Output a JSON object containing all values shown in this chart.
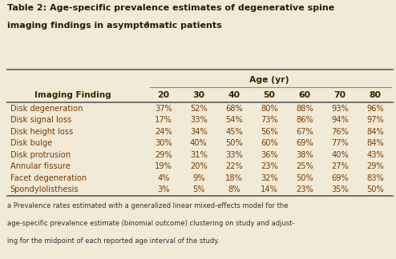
{
  "title_line1": "Table 2: Age-specific prevalence estimates of degenerative spine",
  "title_line2": "imaging findings in asymptomatic patients",
  "title_superscript": "a",
  "age_header": "Age (yr)",
  "col_header": "Imaging Finding",
  "ages": [
    "20",
    "30",
    "40",
    "50",
    "60",
    "70",
    "80"
  ],
  "rows": [
    [
      "Disk degeneration",
      "37%",
      "52%",
      "68%",
      "80%",
      "88%",
      "93%",
      "96%"
    ],
    [
      "Disk signal loss",
      "17%",
      "33%",
      "54%",
      "73%",
      "86%",
      "94%",
      "97%"
    ],
    [
      "Disk height loss",
      "24%",
      "34%",
      "45%",
      "56%",
      "67%",
      "76%",
      "84%"
    ],
    [
      "Disk bulge",
      "30%",
      "40%",
      "50%",
      "60%",
      "69%",
      "77%",
      "84%"
    ],
    [
      "Disk protrusion",
      "29%",
      "31%",
      "33%",
      "36%",
      "38%",
      "40%",
      "43%"
    ],
    [
      "Annular fissure",
      "19%",
      "20%",
      "22%",
      "23%",
      "25%",
      "27%",
      "29%"
    ],
    [
      "Facet degeneration",
      "4%",
      "9%",
      "18%",
      "32%",
      "50%",
      "69%",
      "83%"
    ],
    [
      "Spondylolisthesis",
      "3%",
      "5%",
      "8%",
      "14%",
      "23%",
      "35%",
      "50%"
    ]
  ],
  "footnote_lines": [
    "a Prevalence rates estimated with a generalized linear mixed-effects model for the",
    "age-specific prevalence estimate (binomial outcome) clustering on study and adjust-",
    "ing for the midpoint of each reported age interval of the study."
  ],
  "bg_color": "#f0ead6",
  "title_color": "#2b1d00",
  "header_color": "#3a2500",
  "cell_color": "#7a3c00",
  "footnote_color": "#333333",
  "line_color": "#999999"
}
